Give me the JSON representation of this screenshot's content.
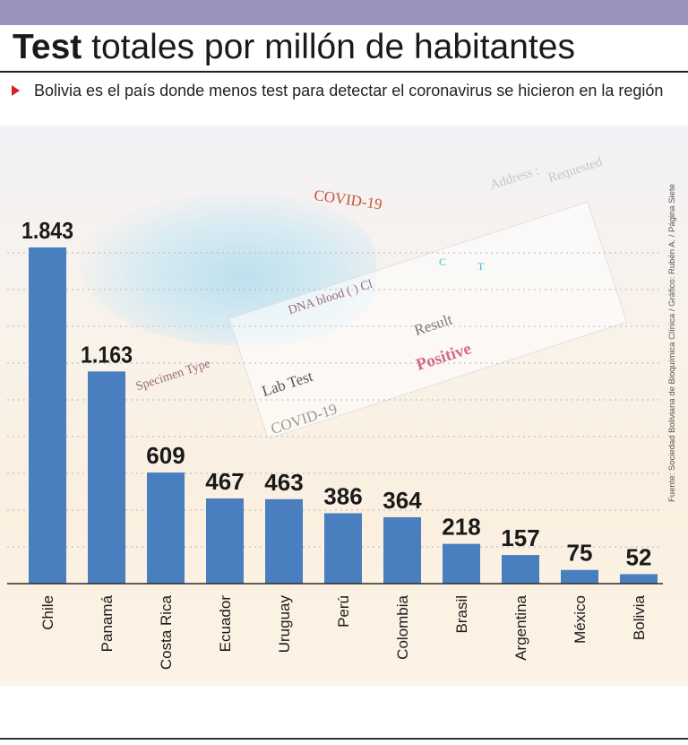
{
  "header": {
    "title_bold": "Test",
    "title_rest": " totales por millón de habitantes",
    "subtitle": "Bolivia es el país donde menos test  para detectar el coronavirus se hicieron en la región"
  },
  "background_photo": {
    "texts": {
      "covid_red": "COVID-19",
      "address": "Address :",
      "requested": "Requested",
      "result": "Result",
      "positive": "Positive",
      "lab_test": "Lab Test",
      "covid_gray": "COVID-19",
      "specimen": "Specimen Type",
      "blood": "DNA blood  ( ) Cl",
      "c_letter": "C",
      "t_letter": "T"
    }
  },
  "credit": "Fuente: Sociedad Boliviana de Bioquímica Clínica / Gráfico: Rubén A. / Página Siete",
  "colors": {
    "bar": "#4a7fbf",
    "accent": "#d21f26",
    "top_bar": "#9b92bb"
  },
  "chart_data": {
    "type": "bar",
    "categories": [
      "Chile",
      "Panamá",
      "Costa Rica",
      "Ecuador",
      "Uruguay",
      "Perú",
      "Colombia",
      "Brasil",
      "Argentina",
      "México",
      "Bolivia"
    ],
    "values": [
      1843,
      1163,
      609,
      467,
      463,
      386,
      364,
      218,
      157,
      75,
      52
    ],
    "value_labels": [
      "1.843",
      "1.163",
      "609",
      "467",
      "463",
      "386",
      "364",
      "218",
      "157",
      "75",
      "52"
    ],
    "title": "Test totales por millón de habitantes",
    "xlabel": "",
    "ylabel": "",
    "ylim": [
      0,
      1843
    ],
    "grid": true
  }
}
